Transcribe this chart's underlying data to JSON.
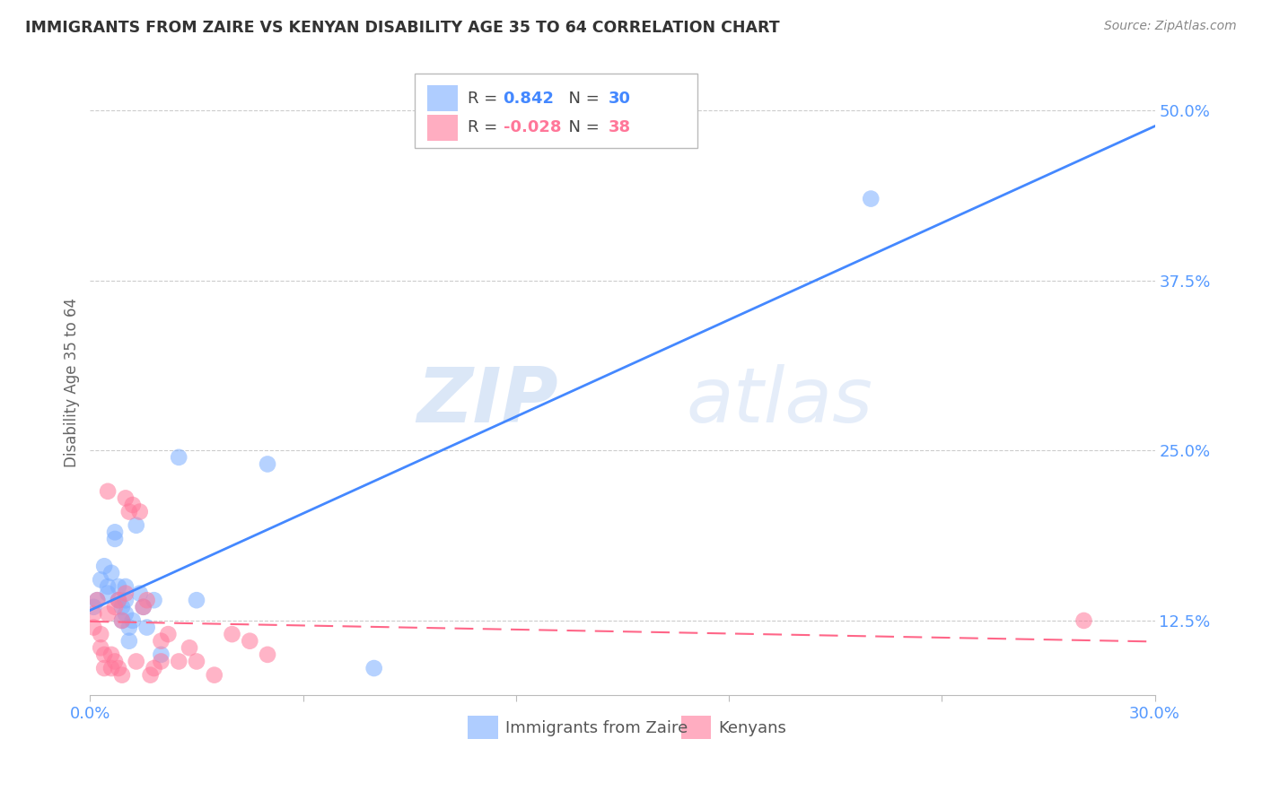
{
  "title": "IMMIGRANTS FROM ZAIRE VS KENYAN DISABILITY AGE 35 TO 64 CORRELATION CHART",
  "source": "Source: ZipAtlas.com",
  "ylabel": "Disability Age 35 to 64",
  "xlim": [
    0.0,
    30.0
  ],
  "ylim": [
    7.0,
    53.0
  ],
  "yticks": [
    12.5,
    25.0,
    37.5,
    50.0
  ],
  "ytick_labels": [
    "12.5%",
    "25.0%",
    "37.5%",
    "50.0%"
  ],
  "xticks": [
    0.0,
    6.0,
    12.0,
    18.0,
    24.0,
    30.0
  ],
  "xtick_labels": [
    "0.0%",
    "",
    "",
    "",
    "",
    "30.0%"
  ],
  "legend_blue_R": "0.842",
  "legend_blue_N": "30",
  "legend_pink_R": "-0.028",
  "legend_pink_N": "38",
  "blue_color": "#7aadff",
  "pink_color": "#ff7799",
  "blue_line_color": "#4488ff",
  "pink_line_color": "#ff6688",
  "grid_color": "#cccccc",
  "title_color": "#333333",
  "axis_label_color": "#5599ff",
  "watermark_zip": "ZIP",
  "watermark_atlas": "atlas",
  "blue_scatter_x": [
    0.1,
    0.2,
    0.3,
    0.4,
    0.5,
    0.5,
    0.6,
    0.7,
    0.7,
    0.8,
    0.8,
    0.9,
    0.9,
    1.0,
    1.0,
    1.0,
    1.1,
    1.1,
    1.2,
    1.3,
    1.4,
    1.5,
    1.6,
    1.8,
    2.0,
    2.5,
    3.0,
    5.0,
    8.0,
    22.0
  ],
  "blue_scatter_y": [
    13.5,
    14.0,
    15.5,
    16.5,
    15.0,
    14.5,
    16.0,
    19.0,
    18.5,
    15.0,
    14.0,
    13.5,
    12.5,
    13.0,
    14.0,
    15.0,
    12.0,
    11.0,
    12.5,
    19.5,
    14.5,
    13.5,
    12.0,
    14.0,
    10.0,
    24.5,
    14.0,
    24.0,
    9.0,
    43.5
  ],
  "pink_scatter_x": [
    0.1,
    0.1,
    0.2,
    0.3,
    0.3,
    0.4,
    0.4,
    0.5,
    0.5,
    0.6,
    0.6,
    0.7,
    0.7,
    0.8,
    0.8,
    0.9,
    0.9,
    1.0,
    1.0,
    1.1,
    1.2,
    1.3,
    1.4,
    1.5,
    1.6,
    1.7,
    1.8,
    2.0,
    2.0,
    2.2,
    2.5,
    2.8,
    3.0,
    3.5,
    4.0,
    4.5,
    5.0,
    28.0
  ],
  "pink_scatter_y": [
    13.0,
    12.0,
    14.0,
    11.5,
    10.5,
    10.0,
    9.0,
    22.0,
    13.0,
    10.0,
    9.0,
    13.5,
    9.5,
    14.0,
    9.0,
    8.5,
    12.5,
    21.5,
    14.5,
    20.5,
    21.0,
    9.5,
    20.5,
    13.5,
    14.0,
    8.5,
    9.0,
    9.5,
    11.0,
    11.5,
    9.5,
    10.5,
    9.5,
    8.5,
    11.5,
    11.0,
    10.0,
    12.5
  ]
}
